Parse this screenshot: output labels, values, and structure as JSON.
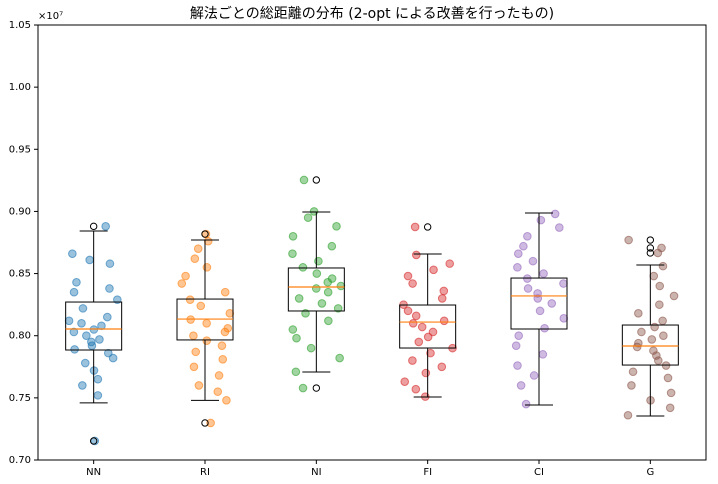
{
  "chart_data": {
    "type": "box",
    "title": "解法ごとの総距離の分布 (2-opt による改善を行ったもの)",
    "y_offset_label": "×10⁷",
    "categories": [
      "NN",
      "RI",
      "NI",
      "FI",
      "CI",
      "G"
    ],
    "colors": [
      "#1f77b4",
      "#ff7f0e",
      "#2ca02c",
      "#d62728",
      "#9467bd",
      "#8c564b"
    ],
    "median_color": "#ff7f0e",
    "ylim": [
      0.7,
      1.05
    ],
    "yticks": [
      {
        "value": 0.7,
        "label": "0.70"
      },
      {
        "value": 0.75,
        "label": "0.75"
      },
      {
        "value": 0.8,
        "label": "0.80"
      },
      {
        "value": 0.85,
        "label": "0.85"
      },
      {
        "value": 0.9,
        "label": "0.90"
      },
      {
        "value": 0.95,
        "label": "0.95"
      },
      {
        "value": 1.0,
        "label": "1.00"
      },
      {
        "value": 1.05,
        "label": "1.05"
      }
    ],
    "boxes": [
      {
        "whislo": 0.746,
        "q1": 0.7885,
        "med": 0.8054,
        "q3": 0.8271,
        "whishi": 0.8843,
        "fliers": [
          0.888,
          0.7153
        ]
      },
      {
        "whislo": 0.748,
        "q1": 0.7966,
        "med": 0.8134,
        "q3": 0.8295,
        "whishi": 0.877,
        "fliers": [
          0.8818,
          0.7298
        ]
      },
      {
        "whislo": 0.7708,
        "q1": 0.8199,
        "med": 0.8392,
        "q3": 0.8545,
        "whishi": 0.8995,
        "fliers": [
          0.9253,
          0.7579
        ]
      },
      {
        "whislo": 0.7507,
        "q1": 0.7901,
        "med": 0.811,
        "q3": 0.8247,
        "whishi": 0.8657,
        "fliers": [
          0.8875
        ]
      },
      {
        "whislo": 0.7443,
        "q1": 0.8054,
        "med": 0.832,
        "q3": 0.8464,
        "whishi": 0.8987,
        "fliers": []
      },
      {
        "whislo": 0.7354,
        "q1": 0.7764,
        "med": 0.7917,
        "q3": 0.8086,
        "whishi": 0.8569,
        "fliers": [
          0.877,
          0.8706,
          0.8666
        ]
      }
    ],
    "points": [
      [
        0.888,
        0.866,
        0.861,
        0.858,
        0.843,
        0.838,
        0.835,
        0.829,
        0.822,
        0.815,
        0.812,
        0.81,
        0.808,
        0.805,
        0.803,
        0.8,
        0.797,
        0.795,
        0.792,
        0.789,
        0.786,
        0.782,
        0.778,
        0.772,
        0.765,
        0.76,
        0.752,
        0.7153
      ],
      [
        0.876,
        0.87,
        0.862,
        0.855,
        0.848,
        0.842,
        0.835,
        0.829,
        0.824,
        0.818,
        0.813,
        0.81,
        0.806,
        0.803,
        0.8,
        0.796,
        0.792,
        0.787,
        0.781,
        0.775,
        0.768,
        0.76,
        0.755,
        0.748,
        0.8818,
        0.7298
      ],
      [
        0.9,
        0.895,
        0.888,
        0.88,
        0.872,
        0.866,
        0.86,
        0.855,
        0.85,
        0.846,
        0.843,
        0.84,
        0.838,
        0.835,
        0.83,
        0.826,
        0.822,
        0.818,
        0.812,
        0.805,
        0.798,
        0.79,
        0.782,
        0.771,
        0.9253,
        0.7579
      ],
      [
        0.865,
        0.858,
        0.853,
        0.848,
        0.842,
        0.836,
        0.83,
        0.825,
        0.82,
        0.816,
        0.812,
        0.81,
        0.807,
        0.803,
        0.799,
        0.795,
        0.79,
        0.786,
        0.78,
        0.775,
        0.77,
        0.763,
        0.757,
        0.751,
        0.8875
      ],
      [
        0.898,
        0.893,
        0.887,
        0.88,
        0.872,
        0.866,
        0.86,
        0.855,
        0.85,
        0.846,
        0.842,
        0.838,
        0.834,
        0.83,
        0.826,
        0.82,
        0.814,
        0.806,
        0.8,
        0.792,
        0.785,
        0.776,
        0.768,
        0.76,
        0.745
      ],
      [
        0.856,
        0.848,
        0.84,
        0.832,
        0.825,
        0.818,
        0.812,
        0.807,
        0.803,
        0.8,
        0.797,
        0.794,
        0.791,
        0.788,
        0.784,
        0.78,
        0.776,
        0.771,
        0.766,
        0.76,
        0.754,
        0.748,
        0.742,
        0.736,
        0.877,
        0.8706,
        0.8666
      ]
    ]
  }
}
